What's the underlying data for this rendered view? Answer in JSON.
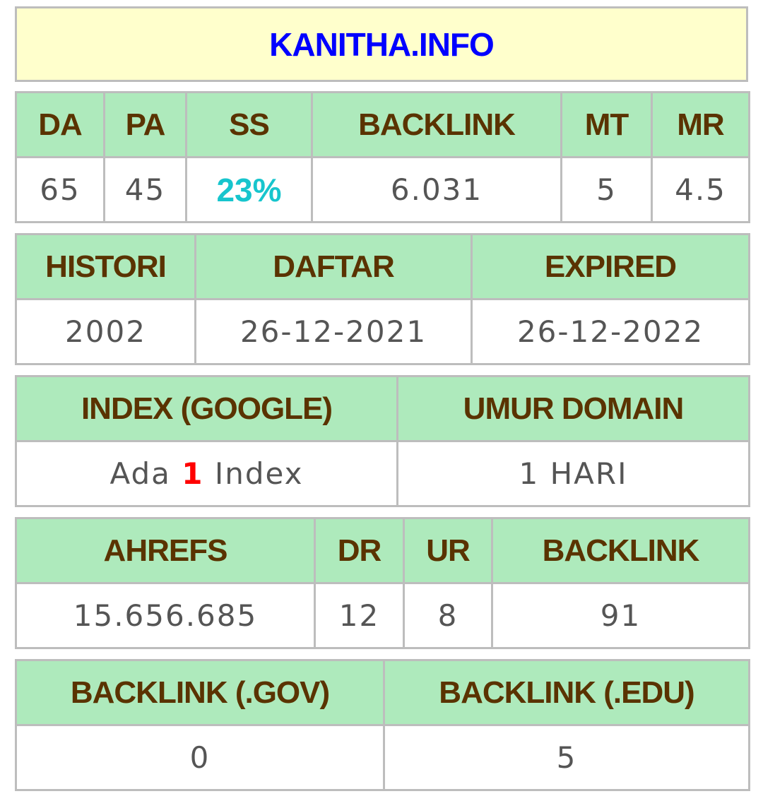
{
  "title": "KANITHA.INFO",
  "colors": {
    "title_text": "#0000ff",
    "title_background": "#ffffcc",
    "header_background": "#aeeabc",
    "header_text": "#5a3300",
    "value_text": "#555555",
    "ss_value": "#17c5cd",
    "index_count": "#ff0000",
    "border": "#bdbdbd"
  },
  "metrics": {
    "headers": {
      "da": "DA",
      "pa": "PA",
      "ss": "SS",
      "backlink": "BACKLINK",
      "mt": "MT",
      "mr": "MR"
    },
    "values": {
      "da": "65",
      "pa": "45",
      "ss": "23%",
      "backlink": "6.031",
      "mt": "5",
      "mr": "4.5"
    }
  },
  "dates": {
    "headers": {
      "histori": "HISTORI",
      "daftar": "DAFTAR",
      "expired": "EXPIRED"
    },
    "values": {
      "histori": "2002",
      "daftar": "26-12-2021",
      "expired": "26-12-2022"
    }
  },
  "index": {
    "headers": {
      "index_google": "INDEX (GOOGLE)",
      "umur_domain": "UMUR DOMAIN"
    },
    "values": {
      "index_prefix": "Ada",
      "index_count": "1",
      "index_suffix": "Index",
      "umur_domain": "1 HARI"
    }
  },
  "ahrefs": {
    "headers": {
      "ahrefs": "AHREFS",
      "dr": "DR",
      "ur": "UR",
      "backlink": "BACKLINK"
    },
    "values": {
      "ahrefs": "15.656.685",
      "dr": "12",
      "ur": "8",
      "backlink": "91"
    }
  },
  "special_backlinks": {
    "headers": {
      "gov": "BACKLINK (.GOV)",
      "edu": "BACKLINK (.EDU)"
    },
    "values": {
      "gov": "0",
      "edu": "5"
    }
  }
}
